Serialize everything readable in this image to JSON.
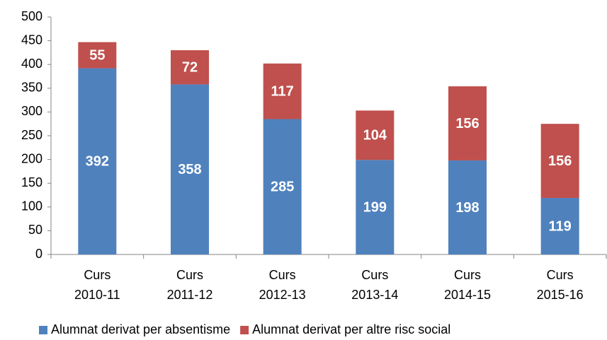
{
  "chart_data": {
    "type": "stacked_bar",
    "categories": [
      "Curs 2010-11",
      "Curs 2011-12",
      "Curs 2012-13",
      "Curs 2013-14",
      "Curs 2014-15",
      "Curs 2015-16"
    ],
    "series": [
      {
        "name": "Alumnat derivat per absentisme",
        "color": "#4f81bd",
        "values": [
          392,
          358,
          285,
          199,
          198,
          119
        ]
      },
      {
        "name": "Alumnat derivat per altre risc social",
        "color": "#c0504d",
        "values": [
          55,
          72,
          117,
          104,
          156,
          156
        ]
      }
    ],
    "ylim": [
      0,
      500
    ],
    "yticks": [
      0,
      50,
      100,
      150,
      200,
      250,
      300,
      350,
      400,
      450,
      500
    ],
    "legend": "bottom"
  }
}
